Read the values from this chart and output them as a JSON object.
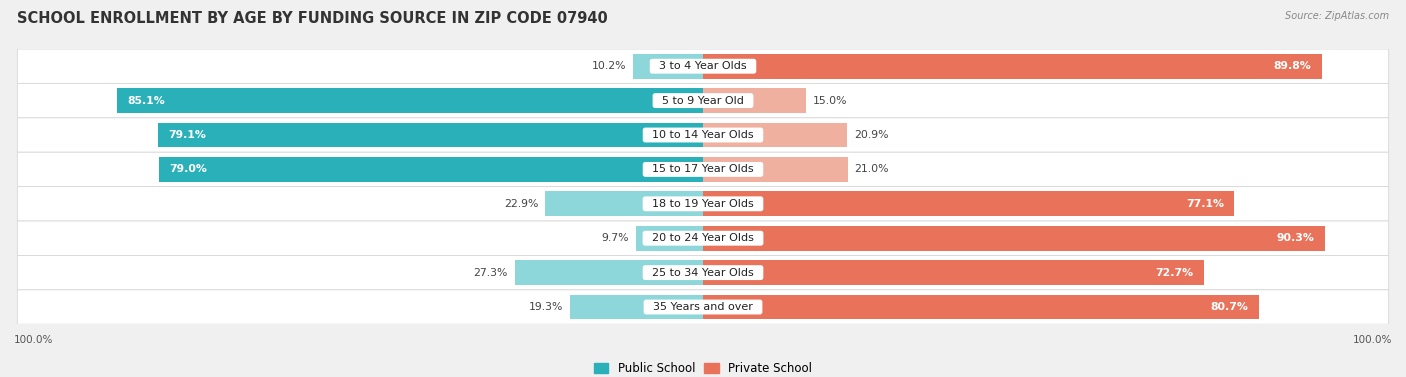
{
  "title": "SCHOOL ENROLLMENT BY AGE BY FUNDING SOURCE IN ZIP CODE 07940",
  "source": "Source: ZipAtlas.com",
  "categories": [
    "3 to 4 Year Olds",
    "5 to 9 Year Old",
    "10 to 14 Year Olds",
    "15 to 17 Year Olds",
    "18 to 19 Year Olds",
    "20 to 24 Year Olds",
    "25 to 34 Year Olds",
    "35 Years and over"
  ],
  "public_values": [
    10.2,
    85.1,
    79.1,
    79.0,
    22.9,
    9.7,
    27.3,
    19.3
  ],
  "private_values": [
    89.8,
    15.0,
    20.9,
    21.0,
    77.1,
    90.3,
    72.7,
    80.7
  ],
  "public_color_dark": "#2ab0b8",
  "public_color_light": "#8dd6d9",
  "private_color_dark": "#e8735a",
  "private_color_light": "#f0b0a0",
  "background_color": "#f0f0f0",
  "row_color": "#ffffff",
  "title_fontsize": 10.5,
  "label_fontsize": 8.0,
  "value_fontsize": 7.8,
  "legend_fontsize": 8.5,
  "axis_label_fontsize": 7.5
}
